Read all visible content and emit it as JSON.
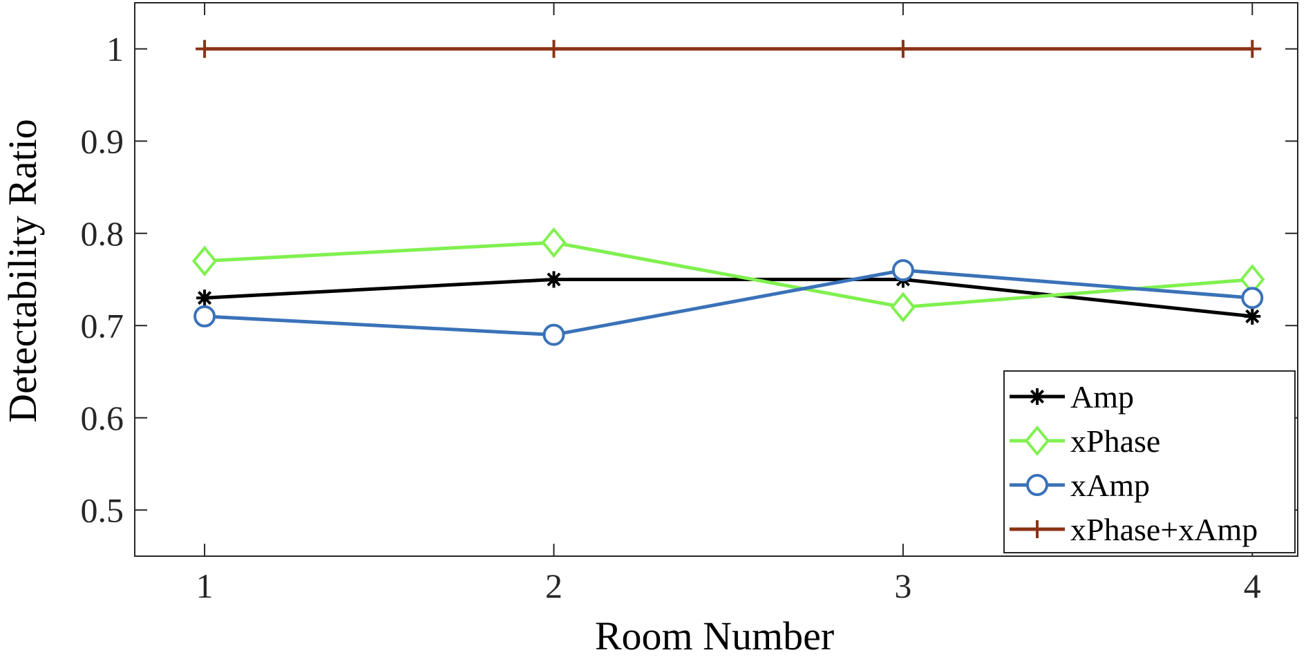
{
  "chart_data": {
    "type": "line",
    "x": [
      1,
      2,
      3,
      4
    ],
    "xlabel": "Room Number",
    "ylabel": "Detectability Ratio",
    "xlim": [
      0.8,
      4.13
    ],
    "ylim": [
      0.45,
      1.05
    ],
    "xticks": [
      "1",
      "2",
      "3",
      "4"
    ],
    "yticks": [
      "0.5",
      "0.6",
      "0.7",
      "0.8",
      "0.9",
      "1"
    ],
    "grid": false,
    "legend_position": "bottom-right",
    "series": [
      {
        "name": "Amp",
        "values": [
          0.73,
          0.75,
          0.75,
          0.71
        ],
        "color": "#000000",
        "marker": "asterisk"
      },
      {
        "name": "xPhase",
        "values": [
          0.77,
          0.79,
          0.72,
          0.75
        ],
        "color": "#80f050",
        "marker": "diamond"
      },
      {
        "name": "xAmp",
        "values": [
          0.71,
          0.69,
          0.76,
          0.73
        ],
        "color": "#3a72b8",
        "marker": "circle"
      },
      {
        "name": "xPhase+xAmp",
        "values": [
          1,
          1,
          1,
          1
        ],
        "color": "#8b3216",
        "marker": "plus"
      }
    ]
  }
}
